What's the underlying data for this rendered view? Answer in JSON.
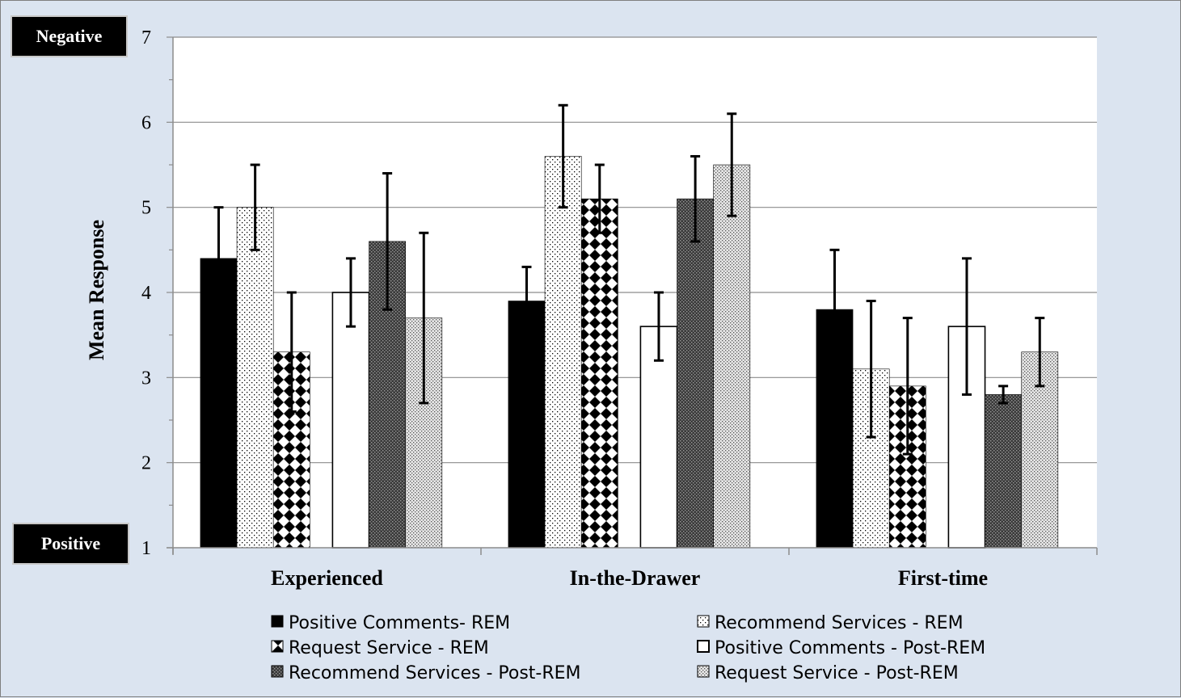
{
  "badges": {
    "top": "Negative",
    "bottom": "Positive"
  },
  "chart_data": {
    "type": "bar",
    "ylabel": "Mean Response",
    "ylim": [
      1,
      7
    ],
    "yticks": [
      1,
      2,
      3,
      4,
      5,
      6,
      7
    ],
    "grid": true,
    "legend_position": "bottom",
    "categories": [
      "Experienced",
      "In-the-Drawer",
      "First-time"
    ],
    "series": [
      {
        "name": "Positive Comments- REM",
        "pattern": "solid-black",
        "values": [
          4.4,
          3.9,
          3.8
        ],
        "error_low": [
          3.8,
          3.5,
          3.1
        ],
        "error_high": [
          5.0,
          4.3,
          4.5
        ]
      },
      {
        "name": "Recommend Services - REM",
        "pattern": "fine-dots",
        "values": [
          5.0,
          5.6,
          3.1
        ],
        "error_low": [
          4.5,
          5.0,
          2.3
        ],
        "error_high": [
          5.5,
          6.2,
          3.9
        ]
      },
      {
        "name": "Request Service - REM",
        "pattern": "diamond-checker",
        "values": [
          3.3,
          5.1,
          2.9
        ],
        "error_low": [
          2.6,
          4.7,
          2.1
        ],
        "error_high": [
          4.0,
          5.5,
          3.7
        ]
      },
      {
        "name": "Positive Comments - Post-REM",
        "pattern": "white",
        "values": [
          4.0,
          3.6,
          3.6
        ],
        "error_low": [
          3.6,
          3.2,
          2.8
        ],
        "error_high": [
          4.4,
          4.0,
          4.4
        ]
      },
      {
        "name": "Recommend Services - Post-REM",
        "pattern": "dark-weave",
        "values": [
          4.6,
          5.1,
          2.8
        ],
        "error_low": [
          3.8,
          4.6,
          2.7
        ],
        "error_high": [
          5.4,
          5.6,
          2.9
        ]
      },
      {
        "name": "Request Service - Post-REM",
        "pattern": "light-dots",
        "values": [
          3.7,
          5.5,
          3.3
        ],
        "error_low": [
          2.7,
          4.9,
          2.9
        ],
        "error_high": [
          4.7,
          6.1,
          3.7
        ]
      }
    ]
  }
}
